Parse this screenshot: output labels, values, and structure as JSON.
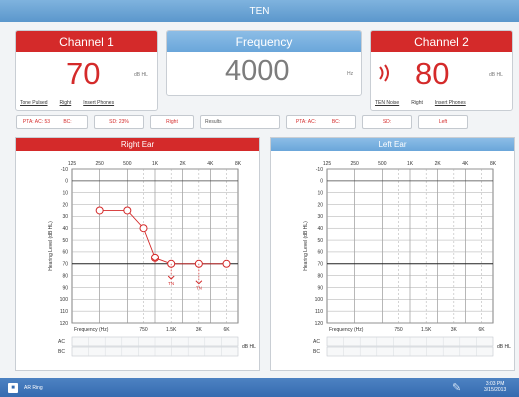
{
  "window": {
    "title": "TEN"
  },
  "channel1": {
    "title": "Channel 1",
    "value": "70",
    "unit": "dB HL"
  },
  "frequency": {
    "title": "Frequency",
    "value": "4000",
    "unit": "Hz"
  },
  "channel2": {
    "title": "Channel 2",
    "value": "80",
    "unit": "dB HL"
  },
  "channel1_controls": {
    "tone": "Tone Pulsed",
    "side": "Right",
    "mode": "Insert Phones"
  },
  "channel2_controls": {
    "tone": "TEN Noise",
    "side": "Right",
    "mode": "Insert Phones"
  },
  "info_bar": {
    "pta_right": "PTA: AC: 53",
    "pta_right_bc": "BC:",
    "sds": "SD: 23%",
    "right": "Right",
    "results": "Results",
    "pta_left": "PTA: AC:",
    "pta_left_bc": "BC:",
    "sd_left": "SD:",
    "left": "Left"
  },
  "right_ear": {
    "title": "Right Ear",
    "color": "#d42a2a",
    "freq_top": [
      "125",
      "250",
      "500",
      "1K",
      "2K",
      "4K",
      "8K"
    ],
    "freq_bottom_label": "Frequency (Hz)",
    "freq_bottom": [
      "750",
      "1.5K",
      "3K",
      "6K"
    ],
    "ylabel": "Hearing Level (dB HL)",
    "y_ticks": [
      "-10",
      "0",
      "10",
      "20",
      "30",
      "40",
      "50",
      "60",
      "70",
      "80",
      "90",
      "100",
      "110",
      "120"
    ],
    "ac_label": "AC",
    "bc_label": "BC",
    "db_unit": "dB HL",
    "points": [
      {
        "freq": 250,
        "db": 25
      },
      {
        "freq": 500,
        "db": 25
      },
      {
        "freq": 750,
        "db": 40
      },
      {
        "freq": 1000,
        "db": 65
      },
      {
        "freq": 1500,
        "db": 70
      },
      {
        "freq": 3000,
        "db": 70
      },
      {
        "freq": 6000,
        "db": 70
      }
    ],
    "bone_marks": [
      {
        "freq": 1000,
        "db": 67
      },
      {
        "freq": 1500,
        "db": 82
      },
      {
        "freq": 3000,
        "db": 86
      }
    ],
    "bone_labels": [
      "TN",
      "TN"
    ]
  },
  "left_ear": {
    "title": "Left Ear",
    "color": "#3b86c9",
    "freq_top": [
      "125",
      "250",
      "500",
      "1K",
      "2K",
      "4K",
      "8K"
    ],
    "freq_bottom_label": "Frequency (Hz)",
    "freq_bottom": [
      "750",
      "1.5K",
      "3K",
      "6K"
    ],
    "ylabel": "Hearing Level (dB HL)",
    "y_ticks": [
      "-10",
      "0",
      "10",
      "20",
      "30",
      "40",
      "50",
      "60",
      "70",
      "80",
      "90",
      "100",
      "110",
      "120"
    ],
    "ac_label": "AC",
    "bc_label": "BC",
    "db_unit": "dB HL"
  },
  "taskbar": {
    "app": "AR Ring",
    "time": "3:03 PM",
    "date": "3/15/2013"
  }
}
